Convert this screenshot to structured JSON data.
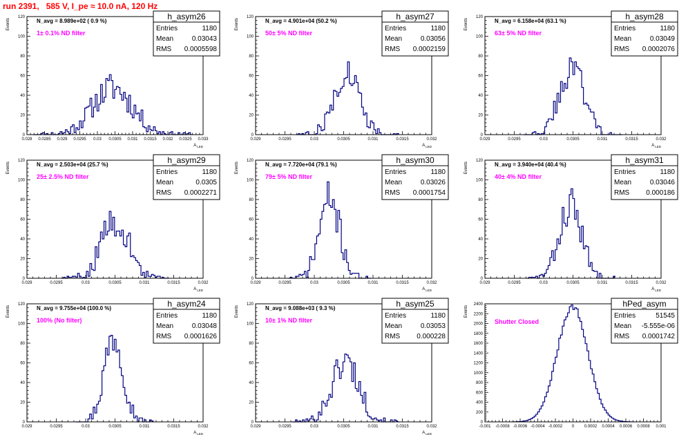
{
  "page": {
    "title": "run 2391,   585 V, I_pe ≈ 10.0 nA, 120 Hz"
  },
  "stats_labels": {
    "entries": "Entries",
    "mean": "Mean",
    "rms": "RMS"
  },
  "chart_data": [
    {
      "type": "histogram",
      "name": "h_asym26",
      "navg": "N_avg = 8.989e+02 ( 0.9 %)",
      "filter": "1± 0.1% ND filter",
      "entries": "1180",
      "mean": "0.03043",
      "rms": "0.0005598",
      "xlabel": "A",
      "xlabel_sub": "LED",
      "ylabel": "Events",
      "xlim": [
        0.028,
        0.033
      ],
      "ylim": [
        0,
        120
      ],
      "xticks": [
        "0.028",
        "0.0285",
        "0.029",
        "0.0295",
        "0.03",
        "0.0305",
        "0.031",
        "0.0315",
        "0.032",
        "0.0325",
        "0.033"
      ],
      "yticks": [
        "0",
        "20",
        "40",
        "60",
        "80",
        "100",
        "120"
      ],
      "hist": {
        "center": 0.03043,
        "sigma": 0.00056,
        "peak": 48,
        "bin": 5e-05,
        "seed": 11
      }
    },
    {
      "type": "histogram",
      "name": "h_asym27",
      "navg": "N_avg = 4.901e+04 (50.2 %)",
      "filter": "50± 5% ND filter",
      "entries": "1180",
      "mean": "0.03056",
      "rms": "0.0002159",
      "xlabel": "A",
      "xlabel_sub": "LED",
      "ylabel": "Events",
      "xlim": [
        0.029,
        0.032
      ],
      "ylim": [
        0,
        120
      ],
      "xticks": [
        "0.029",
        "0.0295",
        "0.03",
        "0.0305",
        "0.031",
        "0.0315",
        "0.032"
      ],
      "yticks": [
        "0",
        "20",
        "40",
        "60",
        "80",
        "100",
        "120"
      ],
      "hist": {
        "center": 0.03056,
        "sigma": 0.000216,
        "peak": 64,
        "bin": 3e-05,
        "seed": 27
      }
    },
    {
      "type": "histogram",
      "name": "h_asym28",
      "navg": "N_avg = 6.158e+04 (63.1 %)",
      "filter": "63± 5% ND filter",
      "entries": "1180",
      "mean": "0.03049",
      "rms": "0.0002076",
      "xlabel": "A",
      "xlabel_sub": "LED",
      "ylabel": "Events",
      "xlim": [
        0.029,
        0.032
      ],
      "ylim": [
        0,
        120
      ],
      "xticks": [
        "0.029",
        "0.0295",
        "0.03",
        "0.0305",
        "0.031",
        "0.0315",
        "0.032"
      ],
      "yticks": [
        "0",
        "20",
        "40",
        "60",
        "80",
        "100",
        "120"
      ],
      "hist": {
        "center": 0.03049,
        "sigma": 0.000208,
        "peak": 70,
        "bin": 3e-05,
        "seed": 43
      }
    },
    {
      "type": "histogram",
      "name": "h_asym29",
      "navg": "N_avg = 2.503e+04 (25.7 %)",
      "filter": "25± 2.5% ND filter",
      "entries": "1180",
      "mean": "0.0305",
      "rms": "0.0002271",
      "xlabel": "A",
      "xlabel_sub": "LED",
      "ylabel": "Events",
      "xlim": [
        0.029,
        0.032
      ],
      "ylim": [
        0,
        120
      ],
      "xticks": [
        "0.029",
        "0.0295",
        "0.03",
        "0.0305",
        "0.031",
        "0.0315",
        "0.032"
      ],
      "yticks": [
        "0",
        "20",
        "40",
        "60",
        "80",
        "100",
        "120"
      ],
      "hist": {
        "center": 0.0305,
        "sigma": 0.000227,
        "peak": 60,
        "bin": 3e-05,
        "seed": 59
      }
    },
    {
      "type": "histogram",
      "name": "h_asym30",
      "navg": "N_avg = 7.720e+04 (79.1 %)",
      "filter": "79± 5% ND filter",
      "entries": "1180",
      "mean": "0.03026",
      "rms": "0.0001754",
      "xlabel": "A",
      "xlabel_sub": "LED",
      "ylabel": "Events",
      "xlim": [
        0.029,
        0.032
      ],
      "ylim": [
        0,
        120
      ],
      "xticks": [
        "0.029",
        "0.0295",
        "0.03",
        "0.0305",
        "0.031",
        "0.0315",
        "0.032"
      ],
      "yticks": [
        "0",
        "20",
        "40",
        "60",
        "80",
        "100",
        "120"
      ],
      "hist": {
        "center": 0.03026,
        "sigma": 0.000175,
        "peak": 80,
        "bin": 3e-05,
        "seed": 71
      }
    },
    {
      "type": "histogram",
      "name": "h_asym31",
      "navg": "N_avg = 3.940e+04 (40.4 %)",
      "filter": "40± 4% ND filter",
      "entries": "1180",
      "mean": "0.03046",
      "rms": "0.000186",
      "xlabel": "A",
      "xlabel_sub": "LED",
      "ylabel": "Events",
      "xlim": [
        0.029,
        0.032
      ],
      "ylim": [
        0,
        120
      ],
      "xticks": [
        "0.029",
        "0.0295",
        "0.03",
        "0.0305",
        "0.031",
        "0.0315",
        "0.032"
      ],
      "yticks": [
        "0",
        "20",
        "40",
        "60",
        "80",
        "100",
        "120"
      ],
      "hist": {
        "center": 0.03046,
        "sigma": 0.000186,
        "peak": 75,
        "bin": 3e-05,
        "seed": 83
      }
    },
    {
      "type": "histogram",
      "name": "h_asym24",
      "navg": "N_avg = 9.755e+04 (100.0 %)",
      "filter": "100% (No filter)",
      "entries": "1180",
      "mean": "0.03048",
      "rms": "0.0001626",
      "xlabel": "A",
      "xlabel_sub": "LED",
      "ylabel": "Events",
      "xlim": [
        0.029,
        0.032
      ],
      "ylim": [
        0,
        120
      ],
      "xticks": [
        "0.029",
        "0.0295",
        "0.03",
        "0.0305",
        "0.031",
        "0.0315",
        "0.032"
      ],
      "yticks": [
        "0",
        "20",
        "40",
        "60",
        "80",
        "100",
        "120"
      ],
      "hist": {
        "center": 0.03048,
        "sigma": 0.000163,
        "peak": 88,
        "bin": 3e-05,
        "seed": 97
      }
    },
    {
      "type": "histogram",
      "name": "h_asym25",
      "navg": "N_avg = 9.088e+03 ( 9.3 %)",
      "filter": "10± 1% ND filter",
      "entries": "1180",
      "mean": "0.03053",
      "rms": "0.000228",
      "xlabel": "A",
      "xlabel_sub": "LED",
      "ylabel": "Events",
      "xlim": [
        0.029,
        0.032
      ],
      "ylim": [
        0,
        120
      ],
      "xticks": [
        "0.029",
        "0.0295",
        "0.03",
        "0.0305",
        "0.031",
        "0.0315",
        "0.032"
      ],
      "yticks": [
        "0",
        "20",
        "40",
        "60",
        "80",
        "100",
        "120"
      ],
      "hist": {
        "center": 0.03053,
        "sigma": 0.000228,
        "peak": 62,
        "bin": 3e-05,
        "seed": 101
      }
    },
    {
      "type": "histogram",
      "name": "hPed_asym",
      "navg": "",
      "filter": "Shutter Closed",
      "entries": "51545",
      "mean": "-5.555e-06",
      "rms": "0.0001742",
      "xlabel": "",
      "xlabel_sub": "",
      "ylabel": "Events",
      "xlim": [
        -0.001,
        0.001
      ],
      "ylim": [
        0,
        2400
      ],
      "xticks": [
        "-0.001",
        "-0.0008",
        "-0.0006",
        "-0.0004",
        "-0.0002",
        "0",
        "0.0002",
        "0.0004",
        "0.0006",
        "0.0008",
        "0.001"
      ],
      "yticks": [
        "0",
        "200",
        "400",
        "600",
        "800",
        "1000",
        "1200",
        "1400",
        "1600",
        "1800",
        "2000",
        "2200",
        "2400"
      ],
      "hist": {
        "center": -5.6e-06,
        "sigma": 0.000174,
        "peak": 2350,
        "bin": 2e-05,
        "seed": 7,
        "smooth": true
      }
    }
  ]
}
